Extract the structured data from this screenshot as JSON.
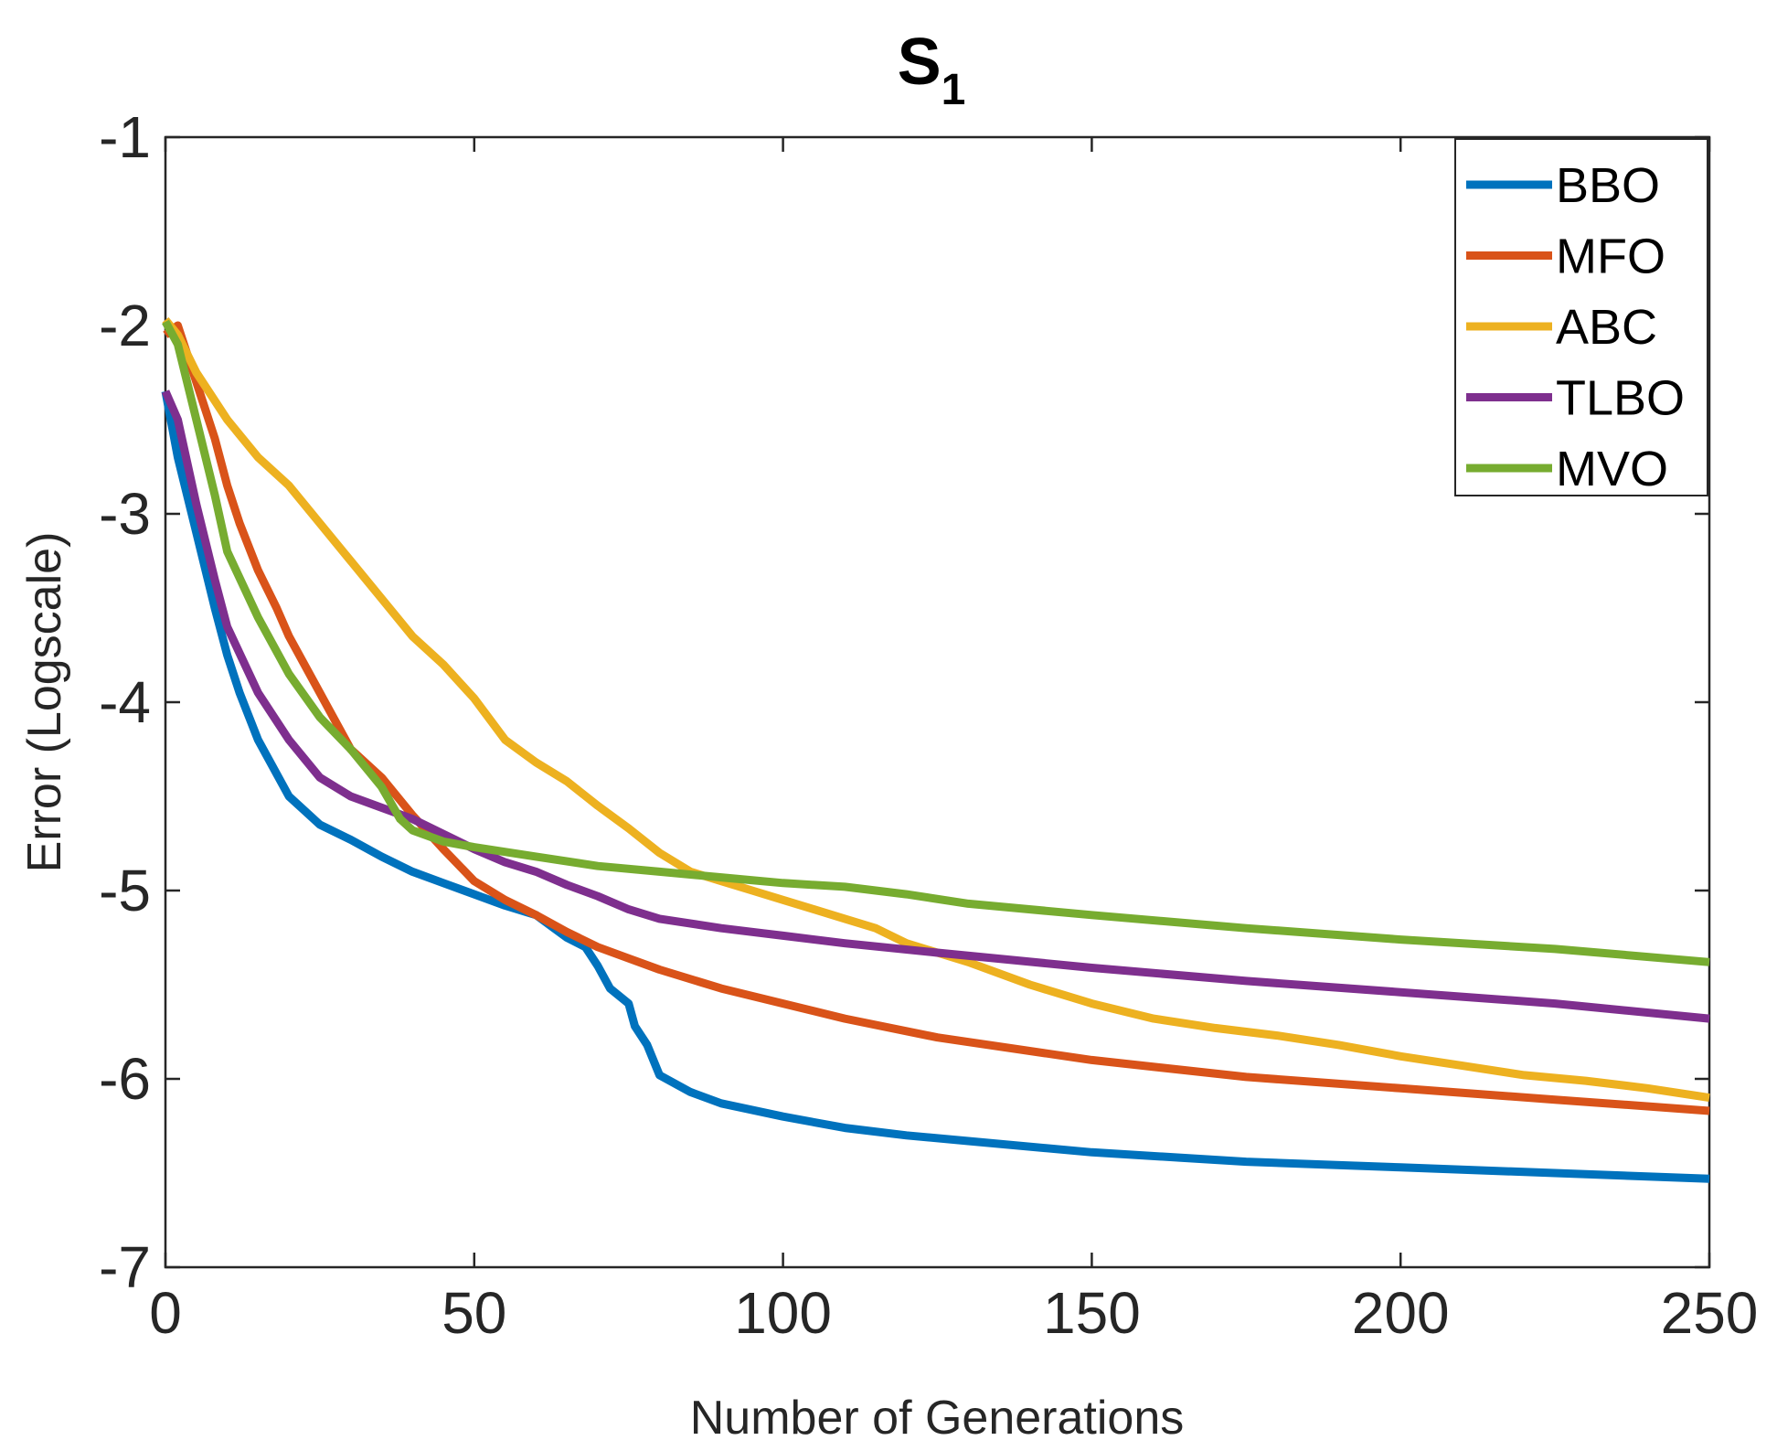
{
  "chart_data": {
    "type": "line",
    "title": "S",
    "title_subscript": "1",
    "xlabel": "Number of Generations",
    "ylabel": "Error (Logscale)",
    "xlim": [
      0,
      250
    ],
    "ylim": [
      -7,
      -1
    ],
    "xticks": [
      0,
      50,
      100,
      150,
      200,
      250
    ],
    "yticks": [
      -1,
      -2,
      -3,
      -4,
      -5,
      -6,
      -7
    ],
    "xtick_labels": [
      "0",
      "50",
      "100",
      "150",
      "200",
      "250"
    ],
    "ytick_labels": [
      "-1",
      "-2",
      "-3",
      "-4",
      "-5",
      "-6",
      "-7"
    ],
    "grid": false,
    "legend_position": "top-right",
    "series": [
      {
        "name": "BBO",
        "color": "#0072BD",
        "x": [
          0,
          2,
          5,
          8,
          10,
          12,
          15,
          20,
          25,
          30,
          35,
          40,
          45,
          50,
          55,
          60,
          65,
          68,
          70,
          72,
          75,
          76,
          78,
          80,
          85,
          90,
          100,
          110,
          120,
          130,
          150,
          175,
          200,
          225,
          250
        ],
        "y": [
          -2.35,
          -2.7,
          -3.1,
          -3.5,
          -3.75,
          -3.95,
          -4.2,
          -4.5,
          -4.65,
          -4.73,
          -4.82,
          -4.9,
          -4.96,
          -5.02,
          -5.08,
          -5.13,
          -5.25,
          -5.3,
          -5.4,
          -5.52,
          -5.6,
          -5.72,
          -5.82,
          -5.98,
          -6.07,
          -6.13,
          -6.2,
          -6.26,
          -6.3,
          -6.33,
          -6.39,
          -6.44,
          -6.47,
          -6.5,
          -6.53
        ]
      },
      {
        "name": "MFO",
        "color": "#D95319",
        "x": [
          0,
          2,
          5,
          8,
          10,
          12,
          15,
          18,
          20,
          25,
          30,
          35,
          40,
          45,
          50,
          55,
          60,
          65,
          70,
          75,
          80,
          90,
          100,
          110,
          125,
          150,
          175,
          200,
          225,
          250
        ],
        "y": [
          -2.05,
          -2.0,
          -2.3,
          -2.6,
          -2.85,
          -3.05,
          -3.3,
          -3.5,
          -3.65,
          -3.95,
          -4.25,
          -4.4,
          -4.6,
          -4.78,
          -4.95,
          -5.05,
          -5.13,
          -5.22,
          -5.3,
          -5.36,
          -5.42,
          -5.52,
          -5.6,
          -5.68,
          -5.78,
          -5.9,
          -5.99,
          -6.05,
          -6.11,
          -6.17
        ]
      },
      {
        "name": "ABC",
        "color": "#EDB120",
        "x": [
          0,
          2,
          5,
          10,
          15,
          20,
          25,
          30,
          35,
          40,
          45,
          50,
          55,
          60,
          65,
          70,
          75,
          80,
          85,
          90,
          95,
          100,
          105,
          110,
          115,
          120,
          130,
          140,
          150,
          160,
          170,
          180,
          190,
          200,
          210,
          220,
          230,
          240,
          250
        ],
        "y": [
          -1.97,
          -2.05,
          -2.25,
          -2.5,
          -2.7,
          -2.85,
          -3.05,
          -3.25,
          -3.45,
          -3.65,
          -3.8,
          -3.98,
          -4.2,
          -4.32,
          -4.42,
          -4.55,
          -4.67,
          -4.8,
          -4.9,
          -4.95,
          -5.0,
          -5.05,
          -5.1,
          -5.15,
          -5.2,
          -5.28,
          -5.38,
          -5.5,
          -5.6,
          -5.68,
          -5.73,
          -5.77,
          -5.82,
          -5.88,
          -5.93,
          -5.98,
          -6.01,
          -6.05,
          -6.1
        ]
      },
      {
        "name": "TLBO",
        "color": "#7E2F8E",
        "x": [
          0,
          2,
          5,
          8,
          10,
          15,
          20,
          25,
          30,
          35,
          40,
          45,
          50,
          55,
          60,
          65,
          70,
          75,
          80,
          90,
          100,
          110,
          125,
          150,
          175,
          200,
          225,
          250
        ],
        "y": [
          -2.35,
          -2.5,
          -2.95,
          -3.35,
          -3.6,
          -3.95,
          -4.2,
          -4.4,
          -4.5,
          -4.56,
          -4.62,
          -4.7,
          -4.78,
          -4.85,
          -4.9,
          -4.97,
          -5.03,
          -5.1,
          -5.15,
          -5.2,
          -5.24,
          -5.28,
          -5.33,
          -5.41,
          -5.48,
          -5.54,
          -5.6,
          -5.68
        ]
      },
      {
        "name": "MVO",
        "color": "#77AC30",
        "x": [
          0,
          2,
          5,
          8,
          10,
          15,
          20,
          25,
          30,
          35,
          38,
          40,
          45,
          50,
          60,
          70,
          80,
          90,
          100,
          110,
          120,
          130,
          150,
          175,
          200,
          225,
          250
        ],
        "y": [
          -1.98,
          -2.1,
          -2.5,
          -2.9,
          -3.2,
          -3.55,
          -3.85,
          -4.08,
          -4.25,
          -4.45,
          -4.62,
          -4.68,
          -4.74,
          -4.77,
          -4.82,
          -4.87,
          -4.9,
          -4.93,
          -4.96,
          -4.98,
          -5.02,
          -5.07,
          -5.13,
          -5.2,
          -5.26,
          -5.31,
          -5.38
        ]
      }
    ]
  }
}
